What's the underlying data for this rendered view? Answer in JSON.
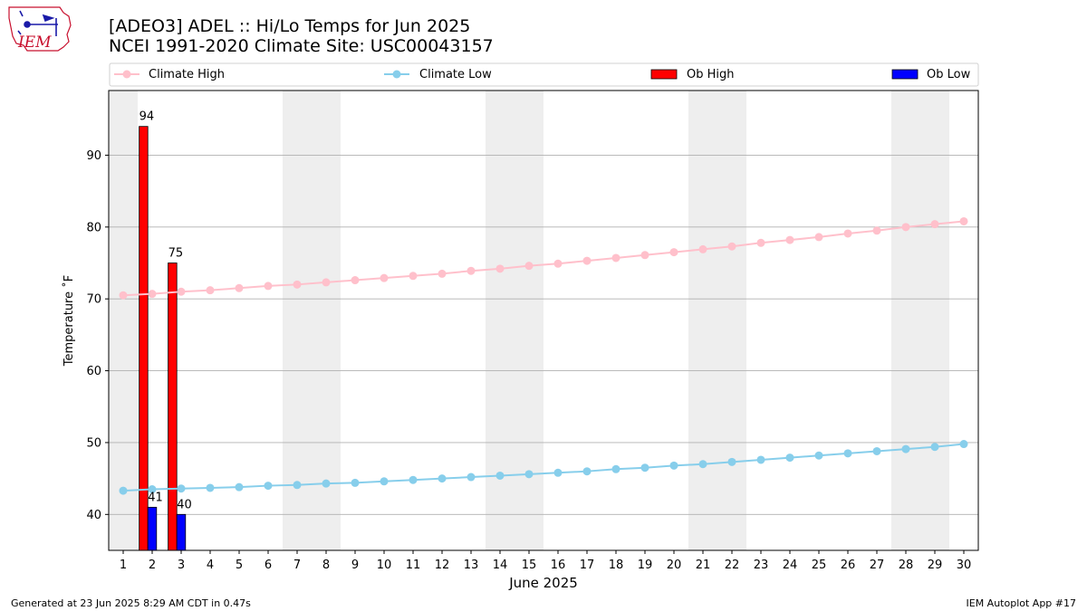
{
  "title_line1": "[ADEO3] ADEL :: Hi/Lo Temps for Jun 2025",
  "title_line2": "NCEI 1991-2020 Climate Site: USC00043157",
  "logo_text": "IEM",
  "footer_left": "Generated at 23 Jun 2025 8:29 AM CDT in 0.47s",
  "footer_right": "IEM Autoplot App #17",
  "legend": {
    "climate_high": "Climate High",
    "climate_low": "Climate Low",
    "ob_high": "Ob High",
    "ob_low": "Ob Low"
  },
  "colors": {
    "climate_high": "#ffc0cb",
    "climate_low": "#87ceeb",
    "ob_high": "#ff0000",
    "ob_low": "#0000ff",
    "weekend": "#eeeeee",
    "grid": "#b0b0b0"
  },
  "chart_data": {
    "type": "bar",
    "xlabel": "June 2025",
    "ylabel": "Temperature ˚F",
    "xlim": [
      0.5,
      30.5
    ],
    "ylim": [
      35,
      99
    ],
    "yticks": [
      40,
      50,
      60,
      70,
      80,
      90
    ],
    "days": [
      1,
      2,
      3,
      4,
      5,
      6,
      7,
      8,
      9,
      10,
      11,
      12,
      13,
      14,
      15,
      16,
      17,
      18,
      19,
      20,
      21,
      22,
      23,
      24,
      25,
      26,
      27,
      28,
      29,
      30
    ],
    "weekend_days": [
      1,
      7,
      8,
      14,
      15,
      21,
      22,
      28,
      29
    ],
    "climate_high": [
      70.5,
      70.7,
      71.0,
      71.2,
      71.5,
      71.8,
      72.0,
      72.3,
      72.6,
      72.9,
      73.2,
      73.5,
      73.9,
      74.2,
      74.6,
      74.9,
      75.3,
      75.7,
      76.1,
      76.5,
      76.9,
      77.3,
      77.8,
      78.2,
      78.6,
      79.1,
      79.5,
      80.0,
      80.4,
      80.8
    ],
    "climate_low": [
      43.3,
      43.5,
      43.6,
      43.7,
      43.8,
      44.0,
      44.1,
      44.3,
      44.4,
      44.6,
      44.8,
      45.0,
      45.2,
      45.4,
      45.6,
      45.8,
      46.0,
      46.3,
      46.5,
      46.8,
      47.0,
      47.3,
      47.6,
      47.9,
      48.2,
      48.5,
      48.8,
      49.1,
      49.4,
      49.8
    ],
    "ob_high": [
      {
        "day": 2,
        "value": 94
      },
      {
        "day": 3,
        "value": 75
      }
    ],
    "ob_low": [
      {
        "day": 2,
        "value": 41
      },
      {
        "day": 3,
        "value": 40
      }
    ]
  }
}
